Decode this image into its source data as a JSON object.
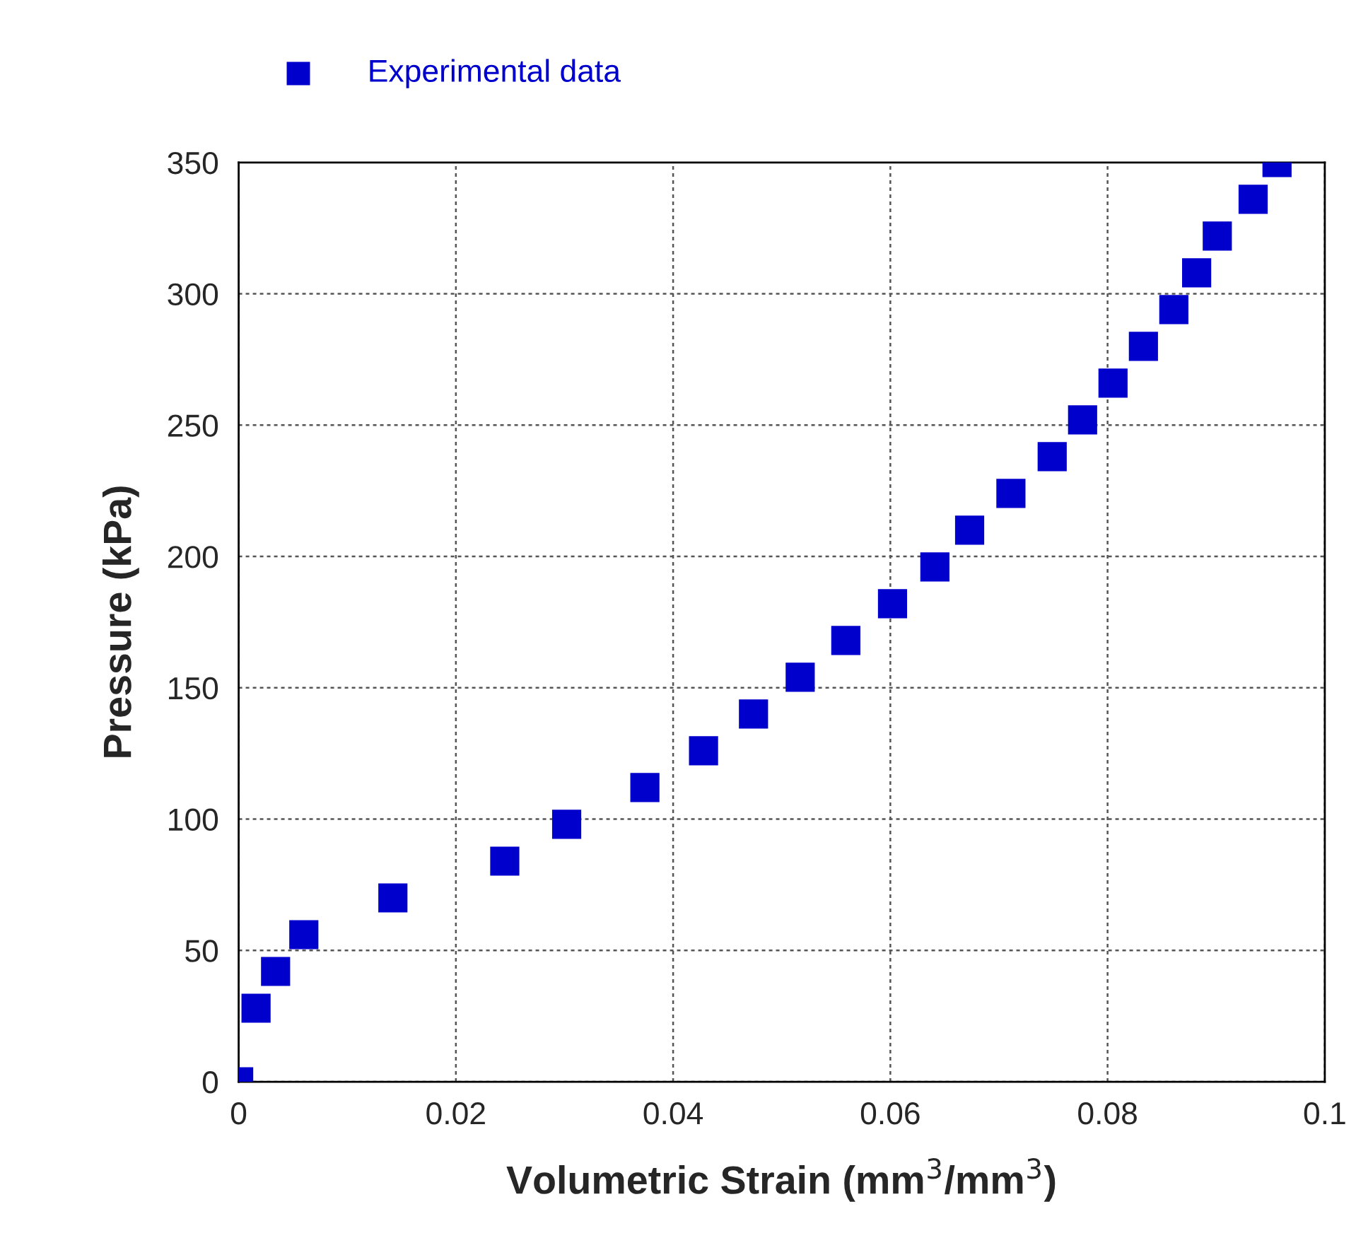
{
  "chart_data": {
    "type": "scatter",
    "xlabel": "Volumetric Strain (mm$^{3}$/mm$^{3}$)",
    "ylabel": "Pressure (kPa)",
    "x": [
      0,
      0.0016,
      0.0034,
      0.006,
      0.0142,
      0.0245,
      0.0302,
      0.0374,
      0.0428,
      0.0474,
      0.0517,
      0.0559,
      0.0602,
      0.0641,
      0.0673,
      0.0711,
      0.0749,
      0.0777,
      0.0805,
      0.0833,
      0.0861,
      0.0882,
      0.0901,
      0.0934,
      0.0956
    ],
    "series": [
      {
        "name": "Experimental data",
        "color": "#0000cc",
        "values": [
          0,
          28,
          42,
          56,
          70,
          84,
          98,
          112,
          126,
          140,
          154,
          168,
          182,
          196,
          210,
          224,
          238,
          252,
          266,
          280,
          294,
          308,
          322,
          336,
          350
        ]
      }
    ],
    "xlim": [
      0,
      0.1
    ],
    "xticks": [
      0,
      0.02,
      0.04,
      0.06,
      0.08,
      0.1
    ],
    "ylim": [
      0,
      350
    ],
    "yticks": [
      0,
      50,
      100,
      150,
      200,
      250,
      300,
      350
    ],
    "grid": true,
    "legend": "top",
    "marker": "square"
  }
}
